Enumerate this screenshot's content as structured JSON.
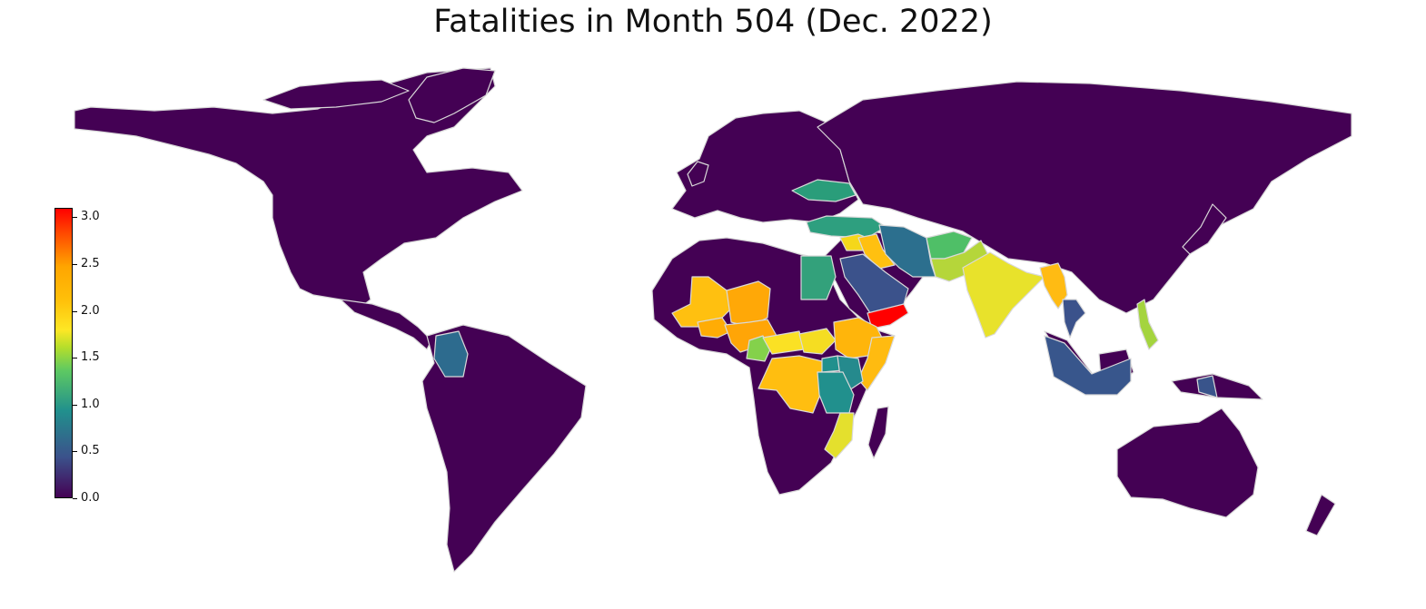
{
  "title": "Fatalities in Month 504 (Dec. 2022)",
  "colorbar": {
    "min": 0.0,
    "max": 3.1,
    "ticks": [
      "0.0",
      "0.5",
      "1.0",
      "1.5",
      "2.0",
      "2.5",
      "3.0"
    ],
    "colors": [
      "#440154",
      "#3b528b",
      "#21908d",
      "#5ec962",
      "#b5de2b",
      "#fde725",
      "#ffc10a",
      "#ffa500",
      "#ff4500",
      "#ff0000"
    ]
  },
  "map": {
    "background_color": "#440154",
    "border_color": "#d9d9d9",
    "highlighted": [
      {
        "id": "ukraine",
        "value": 1.1,
        "color": "#2a9d7a"
      },
      {
        "id": "turkey",
        "value": 1.1,
        "color": "#2e9f7f"
      },
      {
        "id": "syria",
        "value": 1.9,
        "color": "#f5d71a"
      },
      {
        "id": "iraq",
        "value": 2.1,
        "color": "#ffc010"
      },
      {
        "id": "iran",
        "value": 0.7,
        "color": "#2c6f8e"
      },
      {
        "id": "afghanistan",
        "value": 1.3,
        "color": "#4fbf67"
      },
      {
        "id": "pakistan",
        "value": 1.6,
        "color": "#b5d63a"
      },
      {
        "id": "india",
        "value": 1.8,
        "color": "#e8e22b"
      },
      {
        "id": "myanmar",
        "value": 2.2,
        "color": "#ffbb13"
      },
      {
        "id": "thailand",
        "value": 0.5,
        "color": "#3b528b"
      },
      {
        "id": "philippines",
        "value": 1.6,
        "color": "#a4d43e"
      },
      {
        "id": "indonesia",
        "value": 0.5,
        "color": "#38568c"
      },
      {
        "id": "papua-new-guinea",
        "value": 0.5,
        "color": "#39548b"
      },
      {
        "id": "saudi-arabia",
        "value": 0.5,
        "color": "#3b528b"
      },
      {
        "id": "yemen",
        "value": 3.1,
        "color": "#ff0000"
      },
      {
        "id": "egypt",
        "value": 1.1,
        "color": "#33a17b"
      },
      {
        "id": "mali",
        "value": 2.1,
        "color": "#ffc010"
      },
      {
        "id": "burkina-faso",
        "value": 2.3,
        "color": "#ffac05"
      },
      {
        "id": "niger",
        "value": 2.3,
        "color": "#ffa807"
      },
      {
        "id": "nigeria",
        "value": 2.3,
        "color": "#ffa507"
      },
      {
        "id": "cameroon",
        "value": 1.4,
        "color": "#84d14b"
      },
      {
        "id": "chad-south",
        "value": 1.9,
        "color": "#fbe124"
      },
      {
        "id": "south-sudan",
        "value": 1.9,
        "color": "#f5dd22"
      },
      {
        "id": "ethiopia",
        "value": 2.2,
        "color": "#ffb50b"
      },
      {
        "id": "somalia",
        "value": 2.1,
        "color": "#ffbb10"
      },
      {
        "id": "drc",
        "value": 2.1,
        "color": "#ffbe10"
      },
      {
        "id": "uganda",
        "value": 1.0,
        "color": "#21908d"
      },
      {
        "id": "kenya",
        "value": 0.9,
        "color": "#258a8d"
      },
      {
        "id": "tanzania",
        "value": 0.9,
        "color": "#21908d"
      },
      {
        "id": "mozambique",
        "value": 1.8,
        "color": "#e4e02d"
      },
      {
        "id": "colombia",
        "value": 0.7,
        "color": "#2d6b8e"
      }
    ]
  }
}
